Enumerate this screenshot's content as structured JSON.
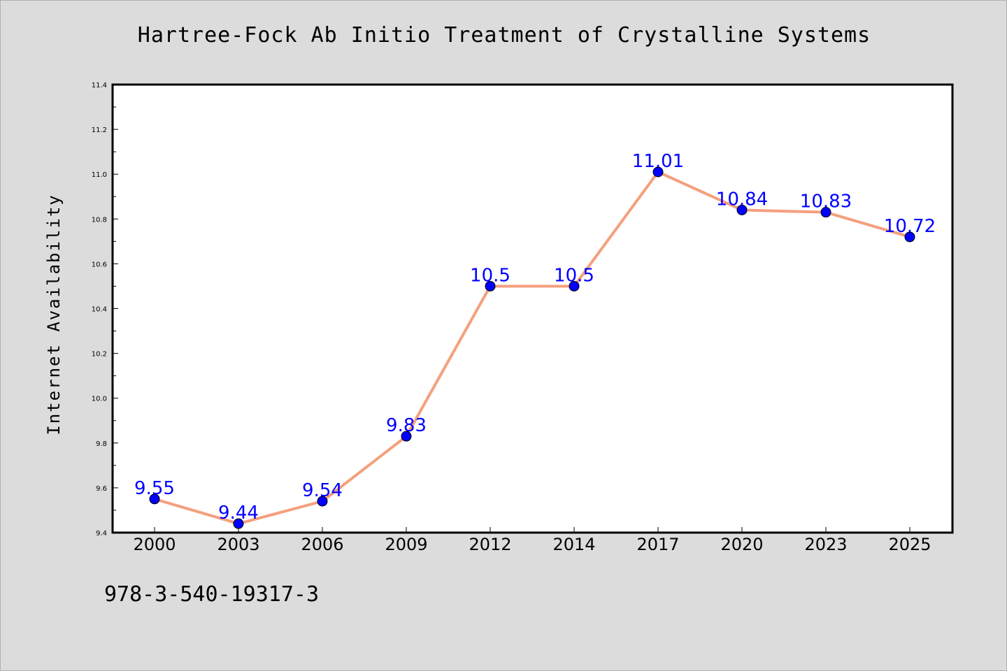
{
  "chart_data": {
    "type": "line",
    "title": "Hartree-Fock Ab Initio Treatment of Crystalline Systems",
    "xlabel": "",
    "ylabel": "Internet Availability",
    "categories": [
      "2000",
      "2003",
      "2006",
      "2009",
      "2012",
      "2014",
      "2017",
      "2020",
      "2023",
      "2025"
    ],
    "series": [
      {
        "values": [
          9.55,
          9.44,
          9.54,
          9.83,
          10.5,
          10.5,
          11.01,
          10.84,
          10.83,
          10.72
        ],
        "labels": [
          "9.55",
          "9.44",
          "9.54",
          "9.83",
          "10.5",
          "10.5",
          "11.01",
          "10.84",
          "10.83",
          "10.72"
        ],
        "line_color": "#f4a07e",
        "marker_color": "#0000ff"
      }
    ],
    "ylim": [
      9.4,
      11.4
    ],
    "yticks": [
      "9.4",
      "9.6",
      "9.8",
      "10.0",
      "10.2",
      "10.4",
      "10.6",
      "10.8",
      "11.0",
      "11.2",
      "11.4"
    ],
    "grid": false,
    "legend": "none"
  },
  "footer": {
    "code": "978-3-540-19317-3"
  }
}
